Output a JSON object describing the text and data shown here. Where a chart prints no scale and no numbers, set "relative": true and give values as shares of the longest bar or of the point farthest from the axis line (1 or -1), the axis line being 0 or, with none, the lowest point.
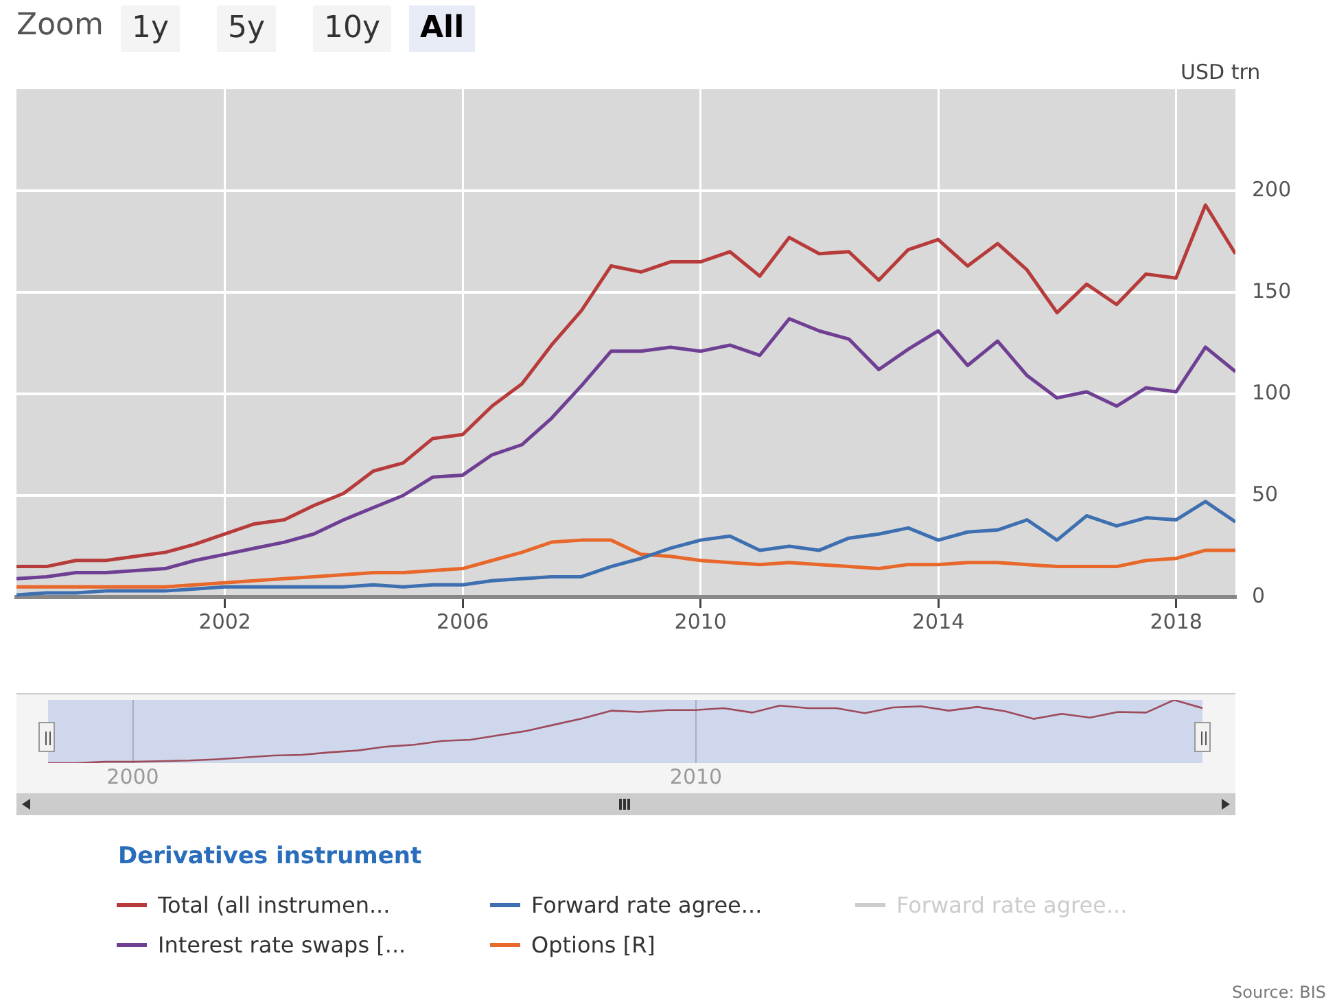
{
  "chart_data": [
    {
      "type": "line",
      "ylabel": "USD trn",
      "legend_title": "Derivatives instrument",
      "legend": "bottom",
      "grid": true,
      "marker": "none",
      "line_style": "solid",
      "x": [
        "1998-06-30",
        "1998-12-31",
        "1999-06-30",
        "1999-12-31",
        "2000-06-30",
        "2000-12-31",
        "2001-06-30",
        "2001-12-31",
        "2002-06-30",
        "2002-12-31",
        "2003-06-30",
        "2003-12-31",
        "2004-06-30",
        "2004-12-31",
        "2005-06-30",
        "2005-12-31",
        "2006-06-30",
        "2006-12-31",
        "2007-06-30",
        "2007-12-31",
        "2008-06-30",
        "2008-12-31",
        "2009-06-30",
        "2009-12-31",
        "2010-06-30",
        "2010-12-31",
        "2011-06-30",
        "2011-12-31",
        "2012-06-30",
        "2012-12-31",
        "2013-06-30",
        "2013-12-31",
        "2014-06-30",
        "2014-12-31",
        "2015-06-30",
        "2015-12-31",
        "2016-06-30",
        "2016-12-31",
        "2017-06-30",
        "2017-12-31",
        "2018-06-30",
        "2018-12-31"
      ],
      "xlim": [
        "1998-06-30",
        "2018-12-31"
      ],
      "xticks": [
        "2002",
        "2006",
        "2010",
        "2014",
        "2018"
      ],
      "ylim": [
        0,
        250
      ],
      "yticks": [
        0,
        50,
        100,
        150,
        200
      ],
      "series": [
        {
          "name": "Total (all instrumen...",
          "color": "#b83b3b",
          "values": [
            15,
            15,
            18,
            18,
            20,
            22,
            26,
            31,
            36,
            38,
            45,
            51,
            62,
            66,
            78,
            80,
            94,
            105,
            124,
            141,
            163,
            160,
            165,
            165,
            170,
            158,
            177,
            169,
            170,
            156,
            171,
            176,
            163,
            174,
            161,
            140,
            154,
            144,
            159,
            157,
            193,
            169
          ]
        },
        {
          "name": "Forward rate agree...",
          "color": "#3e6fb0",
          "values": [
            1,
            2,
            2,
            3,
            3,
            3,
            4,
            5,
            5,
            5,
            5,
            5,
            6,
            5,
            6,
            6,
            8,
            9,
            10,
            10,
            15,
            19,
            24,
            28,
            30,
            23,
            25,
            23,
            29,
            31,
            34,
            28,
            32,
            33,
            38,
            28,
            40,
            35,
            39,
            38,
            47,
            37
          ]
        },
        {
          "name": "Forward rate agree...",
          "color": "#cccccc",
          "values": [
            null,
            null,
            null,
            null,
            null,
            null,
            null,
            null,
            null,
            null,
            null,
            null,
            null,
            null,
            null,
            null,
            null,
            null,
            null,
            null,
            null,
            null,
            null,
            null,
            null,
            null,
            null,
            null,
            null,
            null,
            null,
            null,
            null,
            null,
            null,
            null,
            null,
            null,
            null,
            null,
            null,
            null
          ]
        },
        {
          "name": "Interest rate swaps [...",
          "color": "#6f3f93",
          "values": [
            9,
            10,
            12,
            12,
            13,
            14,
            18,
            21,
            24,
            27,
            31,
            38,
            44,
            50,
            59,
            60,
            70,
            75,
            88,
            104,
            121,
            121,
            123,
            121,
            124,
            119,
            137,
            131,
            127,
            112,
            122,
            131,
            114,
            126,
            109,
            98,
            101,
            94,
            103,
            101,
            123,
            111
          ]
        },
        {
          "name": "Options [R]",
          "color": "#e8672a",
          "values": [
            5,
            5,
            5,
            5,
            5,
            5,
            6,
            7,
            8,
            9,
            10,
            11,
            12,
            12,
            13,
            14,
            18,
            22,
            27,
            28,
            28,
            21,
            20,
            18,
            17,
            16,
            17,
            16,
            15,
            14,
            16,
            16,
            17,
            17,
            16,
            15,
            15,
            15,
            18,
            19,
            23,
            23
          ]
        }
      ],
      "annotations": [
        "Zoom",
        "1y",
        "5y",
        "10y",
        "All",
        "Source: BIS"
      ]
    },
    {
      "type": "line",
      "relative": true,
      "grid": "x",
      "tick_labels": "x",
      "marker": "none",
      "line_style": "solid",
      "x": [
        "1998-06-30",
        "1998-12-31",
        "1999-06-30",
        "1999-12-31",
        "2000-06-30",
        "2000-12-31",
        "2001-06-30",
        "2001-12-31",
        "2002-06-30",
        "2002-12-31",
        "2003-06-30",
        "2003-12-31",
        "2004-06-30",
        "2004-12-31",
        "2005-06-30",
        "2005-12-31",
        "2006-06-30",
        "2006-12-31",
        "2007-06-30",
        "2007-12-31",
        "2008-06-30",
        "2008-12-31",
        "2009-06-30",
        "2009-12-31",
        "2010-06-30",
        "2010-12-31",
        "2011-06-30",
        "2011-12-31",
        "2012-06-30",
        "2012-12-31",
        "2013-06-30",
        "2013-12-31",
        "2014-06-30",
        "2014-12-31",
        "2015-06-30",
        "2015-12-31",
        "2016-06-30",
        "2016-12-31",
        "2017-06-30",
        "2017-12-31",
        "2018-06-30",
        "2018-12-31"
      ],
      "xlim": [
        "1998-06-30",
        "2018-12-31"
      ],
      "xticks": [
        "2000",
        "2010"
      ],
      "series": [
        {
          "color": "#9c4a5a",
          "values": [
            0,
            0,
            0.02,
            0.02,
            0.03,
            0.04,
            0.06,
            0.09,
            0.12,
            0.13,
            0.17,
            0.2,
            0.26,
            0.29,
            0.35,
            0.37,
            0.44,
            0.51,
            0.61,
            0.71,
            0.83,
            0.81,
            0.84,
            0.84,
            0.87,
            0.8,
            0.91,
            0.87,
            0.87,
            0.79,
            0.88,
            0.9,
            0.83,
            0.89,
            0.82,
            0.7,
            0.78,
            0.72,
            0.81,
            0.8,
            1,
            0.87
          ]
        }
      ]
    }
  ]
}
